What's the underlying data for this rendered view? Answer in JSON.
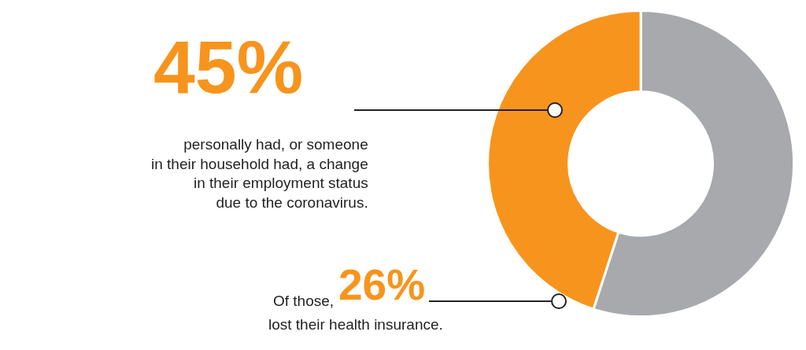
{
  "chart_data": {
    "type": "donut",
    "categories": [
      null,
      null
    ],
    "values": [
      55,
      45
    ],
    "colors": [
      "#a7a9ac",
      "#f7941d"
    ],
    "legend": false,
    "annotations": [
      "45%",
      "personally had, or someone\nin their household had, a change\nin their employment status\ndue to the coronavirus.",
      "Of those,",
      "26%",
      "lost their health insurance."
    ]
  }
}
